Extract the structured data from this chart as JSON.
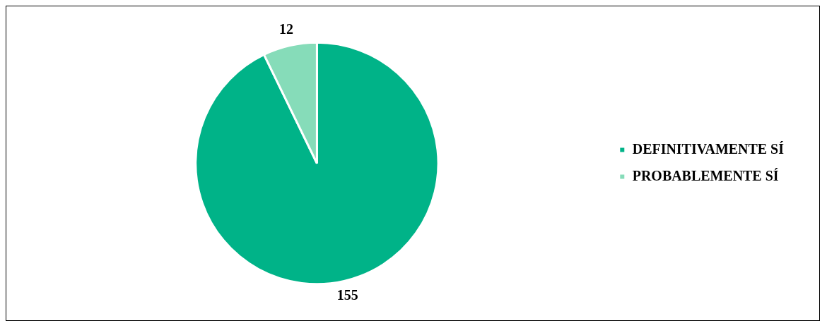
{
  "chart_data": {
    "type": "pie",
    "categories": [
      "DEFINITIVAMENTE SÍ",
      "PROBABLEMENTE SÍ"
    ],
    "values": [
      155,
      12
    ],
    "colors": [
      "#00b388",
      "#86dcb9"
    ],
    "data_labels": true,
    "legend": "right"
  }
}
